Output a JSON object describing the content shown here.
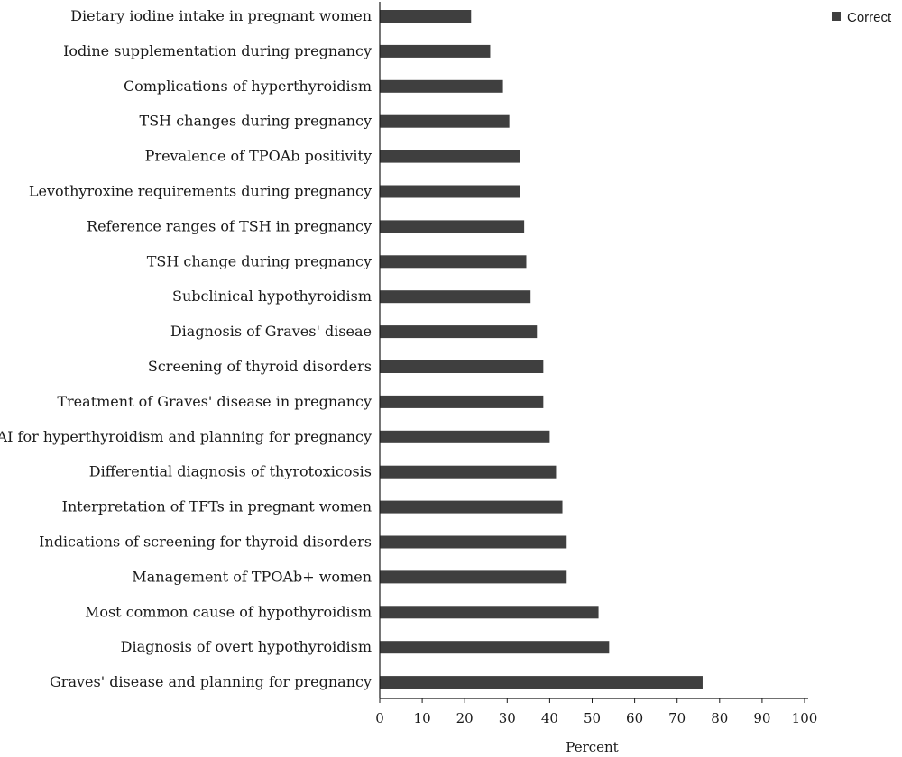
{
  "chart_data": {
    "type": "bar",
    "orientation": "horizontal",
    "categories": [
      "Dietary iodine intake in pregnant women",
      "Iodine supplementation during pregnancy",
      "Complications of hyperthyroidism",
      "TSH changes during pregnancy",
      "Prevalence of TPOAb positivity",
      "Levothyroxine requirements during pregnancy",
      "Reference ranges of TSH in pregnancy",
      "TSH change during pregnancy",
      "Subclinical hypothyroidism",
      "Diagnosis of Graves' diseae",
      "Screening of thyroid disorders",
      "Treatment of Graves' disease in pregnancy",
      "RAI for hyperthyroidism and planning for pregnancy",
      "Differential diagnosis of thyrotoxicosis",
      "Interpretation of TFTs in pregnant women",
      "Indications of screening for thyroid disorders",
      "Management of TPOAb+ women",
      "Most common cause of hypothyroidism",
      "Diagnosis of overt hypothyroidism",
      "Graves' disease and planning for pregnancy"
    ],
    "series": [
      {
        "name": "Correct",
        "values": [
          21.5,
          26,
          29,
          30.5,
          33,
          33,
          34,
          34.5,
          35.5,
          37,
          38.5,
          38.5,
          40,
          41.5,
          43,
          44,
          44,
          51.5,
          54,
          76
        ]
      }
    ],
    "xlabel": "Percent",
    "ylabel": "",
    "xlim": [
      0,
      100
    ],
    "xticks": [
      "0",
      "10",
      "20",
      "30",
      "40",
      "50",
      "60",
      "70",
      "80",
      "90",
      "100"
    ],
    "grid": false,
    "legend_position": "top-right",
    "bar_color": "#3f3f3f"
  }
}
